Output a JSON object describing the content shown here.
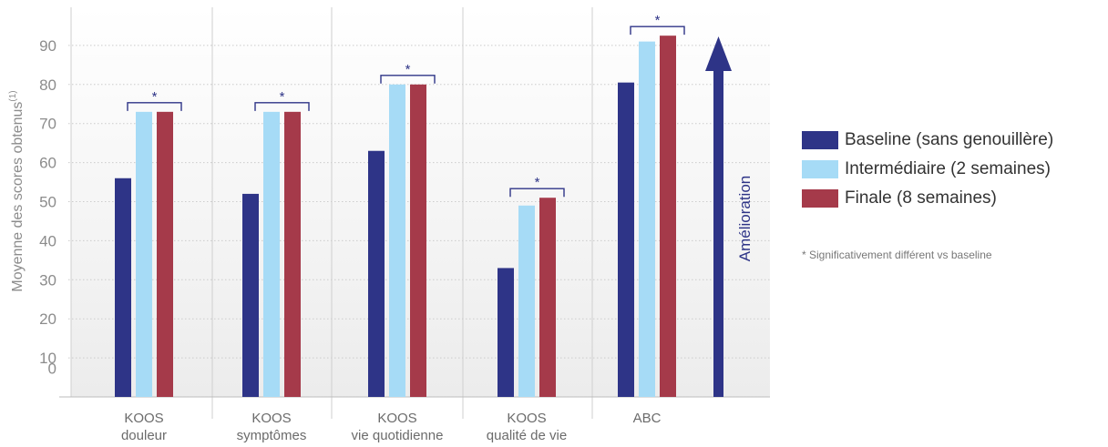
{
  "chart_data": {
    "type": "bar",
    "categories": [
      [
        "KOOS",
        "douleur"
      ],
      [
        "KOOS",
        "symptômes"
      ],
      [
        "KOOS",
        "vie quotidienne"
      ],
      [
        "KOOS",
        "qualité de vie"
      ],
      [
        "ABC",
        ""
      ]
    ],
    "series": [
      {
        "name": "Baseline (sans genouillère)",
        "color": "#2e3487",
        "values": [
          56,
          52,
          63,
          33,
          80.5
        ]
      },
      {
        "name": "Intermédiaire (2 semaines)",
        "color": "#a6dbf6",
        "values": [
          73,
          73,
          80,
          49,
          91
        ]
      },
      {
        "name": "Finale (8 semaines)",
        "color": "#a53a4a",
        "values": [
          73,
          73,
          80,
          51,
          92.5
        ]
      }
    ],
    "ylabel": "Moyenne des scores obtenus",
    "ylabel_sup": "(1)",
    "yticks": [
      "10",
      "20",
      "30",
      "40",
      "50",
      "60",
      "70",
      "80",
      "90"
    ],
    "ytick_zero": "0",
    "ylim": [
      0,
      100
    ],
    "significance_marker": "*",
    "arrow_label": "Amélioration",
    "footnote": "* Significativement différent vs baseline",
    "legend_position": "right"
  }
}
